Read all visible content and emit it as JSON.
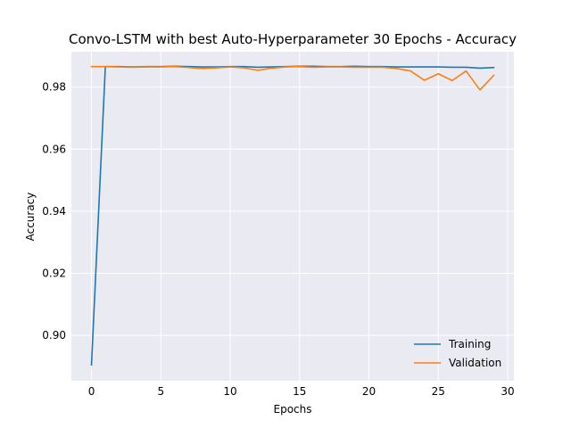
{
  "chart_data": {
    "type": "line",
    "title": "Convo-LSTM with best Auto-Hyperparameter 30 Epochs - Accuracy",
    "xlabel": "Epochs",
    "ylabel": "Accuracy",
    "xlim": [
      -1.45,
      30.45
    ],
    "ylim": [
      0.8854,
      0.9914
    ],
    "xticks": [
      0,
      5,
      10,
      15,
      20,
      25,
      30
    ],
    "xtick_labels": [
      "0",
      "5",
      "10",
      "15",
      "20",
      "25",
      "30"
    ],
    "yticks": [
      0.9,
      0.92,
      0.94,
      0.96,
      0.98
    ],
    "ytick_labels": [
      "0.90",
      "0.92",
      "0.94",
      "0.96",
      "0.98"
    ],
    "grid": true,
    "legend_position": "lower-right",
    "background": "#eaeaf2",
    "x": [
      0,
      1,
      2,
      3,
      4,
      5,
      6,
      7,
      8,
      9,
      10,
      11,
      12,
      13,
      14,
      15,
      16,
      17,
      18,
      19,
      20,
      21,
      22,
      23,
      24,
      25,
      26,
      27,
      28,
      29
    ],
    "series": [
      {
        "name": "Training",
        "color": "#1f77b4",
        "values": [
          0.8905,
          0.9866,
          0.9866,
          0.9865,
          0.9866,
          0.9866,
          0.9867,
          0.9866,
          0.9865,
          0.9865,
          0.9866,
          0.9866,
          0.9864,
          0.9865,
          0.9866,
          0.9867,
          0.9867,
          0.9866,
          0.9866,
          0.9867,
          0.9866,
          0.9866,
          0.9865,
          0.9865,
          0.9865,
          0.9865,
          0.9864,
          0.9864,
          0.9861,
          0.9863
        ]
      },
      {
        "name": "Validation",
        "color": "#ff7f0e",
        "values": [
          0.9866,
          0.9866,
          0.9865,
          0.9864,
          0.9865,
          0.9865,
          0.9866,
          0.9863,
          0.986,
          0.9862,
          0.9865,
          0.9862,
          0.9854,
          0.9861,
          0.9865,
          0.9866,
          0.9864,
          0.9865,
          0.9865,
          0.9864,
          0.9864,
          0.9864,
          0.986,
          0.9852,
          0.9822,
          0.9843,
          0.9821,
          0.9852,
          0.9791,
          0.9838
        ]
      }
    ]
  }
}
